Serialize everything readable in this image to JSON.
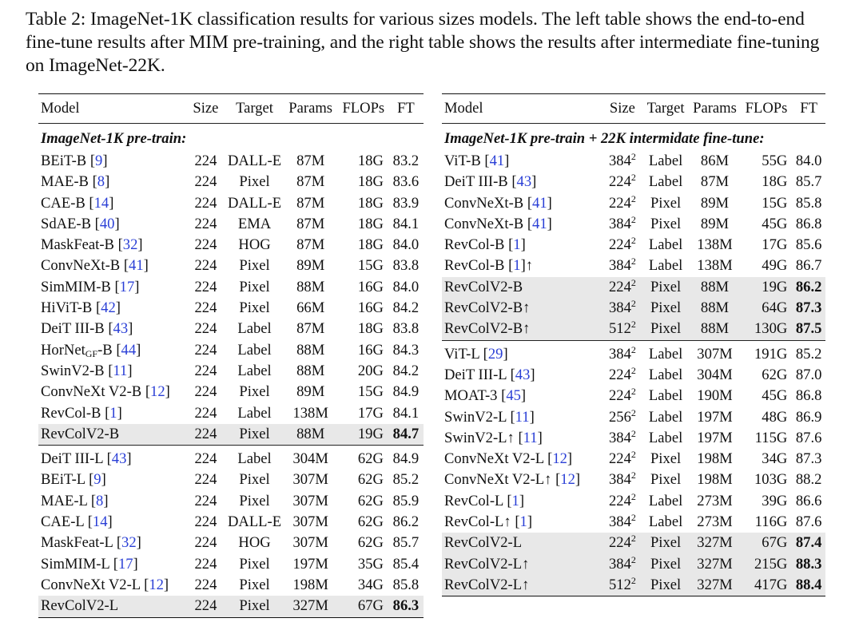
{
  "caption": "Table 2: ImageNet-1K classification results for various sizes models. The left table shows the end-to-end fine-tune results after MIM pre-training, and the right table shows the results after intermediate fine-tuning on ImageNet-22K.",
  "left": {
    "headers": [
      "Model",
      "Size",
      "Target",
      "Params",
      "FLOPs",
      "FT"
    ],
    "section": "ImageNet-1K pre-train:",
    "rows": [
      {
        "name": "BEiT-B",
        "ref": "9",
        "res": "224",
        "target": "DALL-E",
        "params": "87M",
        "flops": "18G",
        "ft": "83.2"
      },
      {
        "name": "MAE-B",
        "ref": "8",
        "res": "224",
        "target": "Pixel",
        "params": "87M",
        "flops": "18G",
        "ft": "83.6"
      },
      {
        "name": "CAE-B",
        "ref": "14",
        "res": "224",
        "target": "DALL-E",
        "params": "87M",
        "flops": "18G",
        "ft": "83.9"
      },
      {
        "name": "SdAE-B",
        "ref": "40",
        "res": "224",
        "target": "EMA",
        "params": "87M",
        "flops": "18G",
        "ft": "84.1"
      },
      {
        "name": "MaskFeat-B",
        "ref": "32",
        "res": "224",
        "target": "HOG",
        "params": "87M",
        "flops": "18G",
        "ft": "84.0"
      },
      {
        "name": "ConvNeXt-B",
        "ref": "41",
        "res": "224",
        "target": "Pixel",
        "params": "89M",
        "flops": "15G",
        "ft": "83.8"
      },
      {
        "name": "SimMIM-B",
        "ref": "17",
        "res": "224",
        "target": "Pixel",
        "params": "88M",
        "flops": "16G",
        "ft": "84.0"
      },
      {
        "name": "HiViT-B",
        "ref": "42",
        "res": "224",
        "target": "Pixel",
        "params": "66M",
        "flops": "16G",
        "ft": "84.2"
      },
      {
        "name": "DeiT III-B",
        "ref": "43",
        "res": "224",
        "target": "Label",
        "params": "87M",
        "flops": "18G",
        "ft": "83.8"
      },
      {
        "name": "HorNet",
        "sub": "GF",
        "suffix": "-B",
        "ref": "44",
        "res": "224",
        "target": "Label",
        "params": "88M",
        "flops": "16G",
        "ft": "84.3"
      },
      {
        "name": "SwinV2-B",
        "ref": "11",
        "res": "224",
        "target": "Label",
        "params": "88M",
        "flops": "20G",
        "ft": "84.2"
      },
      {
        "name": "ConvNeXt V2-B",
        "ref": "12",
        "res": "224",
        "target": "Pixel",
        "params": "89M",
        "flops": "15G",
        "ft": "84.9"
      },
      {
        "name": "RevCol-B",
        "ref": "1",
        "res": "224",
        "target": "Label",
        "params": "138M",
        "flops": "17G",
        "ft": "84.1"
      },
      {
        "name": "RevColV2-B",
        "ref": "",
        "res": "224",
        "target": "Pixel",
        "params": "88M",
        "flops": "19G",
        "ft": "84.7",
        "hl": true,
        "bold": true
      },
      {
        "name": "DeiT III-L",
        "ref": "43",
        "res": "224",
        "target": "Label",
        "params": "304M",
        "flops": "62G",
        "ft": "84.9",
        "divtop": true
      },
      {
        "name": "BEiT-L",
        "ref": "9",
        "res": "224",
        "target": "Pixel",
        "params": "307M",
        "flops": "62G",
        "ft": "85.2"
      },
      {
        "name": "MAE-L",
        "ref": "8",
        "res": "224",
        "target": "Pixel",
        "params": "307M",
        "flops": "62G",
        "ft": "85.9"
      },
      {
        "name": "CAE-L",
        "ref": "14",
        "res": "224",
        "target": "DALL-E",
        "params": "307M",
        "flops": "62G",
        "ft": "86.2"
      },
      {
        "name": "MaskFeat-L",
        "ref": "32",
        "res": "224",
        "target": "HOG",
        "params": "307M",
        "flops": "62G",
        "ft": "85.7"
      },
      {
        "name": "SimMIM-L",
        "ref": "17",
        "res": "224",
        "target": "Pixel",
        "params": "197M",
        "flops": "35G",
        "ft": "85.4"
      },
      {
        "name": "ConvNeXt V2-L",
        "ref": "12",
        "res": "224",
        "target": "Pixel",
        "params": "198M",
        "flops": "34G",
        "ft": "85.8"
      },
      {
        "name": "RevColV2-L",
        "ref": "",
        "res": "224",
        "target": "Pixel",
        "params": "327M",
        "flops": "67G",
        "ft": "86.3",
        "hl": true,
        "bold": true
      }
    ]
  },
  "right": {
    "headers": [
      "Model",
      "Size",
      "Target",
      "Params",
      "FLOPs",
      "FT"
    ],
    "section": "ImageNet-1K pre-train + 22K intermidate fine-tune:",
    "rows": [
      {
        "name": "ViT-B",
        "ref": "41",
        "res": "384",
        "target": "Label",
        "params": "86M",
        "flops": "55G",
        "ft": "84.0"
      },
      {
        "name": "DeiT III-B",
        "ref": "43",
        "res": "224",
        "target": "Label",
        "params": "87M",
        "flops": "18G",
        "ft": "85.7"
      },
      {
        "name": "ConvNeXt-B",
        "ref": "41",
        "res": "224",
        "target": "Pixel",
        "params": "89M",
        "flops": "15G",
        "ft": "85.8"
      },
      {
        "name": "ConvNeXt-B",
        "ref": "41",
        "res": "384",
        "target": "Pixel",
        "params": "89M",
        "flops": "45G",
        "ft": "86.8"
      },
      {
        "name": "RevCol-B",
        "ref": "1",
        "res": "224",
        "target": "Label",
        "params": "138M",
        "flops": "17G",
        "ft": "85.6"
      },
      {
        "name": "RevCol-B",
        "ref": "1",
        "after": "↑",
        "res": "384",
        "target": "Label",
        "params": "138M",
        "flops": "49G",
        "ft": "86.7"
      },
      {
        "name": "RevColV2-B",
        "ref": "",
        "res": "224",
        "target": "Pixel",
        "params": "88M",
        "flops": "19G",
        "ft": "86.2",
        "hl": true,
        "bold": true
      },
      {
        "name": "RevColV2-B↑",
        "ref": "",
        "res": "384",
        "target": "Pixel",
        "params": "88M",
        "flops": "64G",
        "ft": "87.3",
        "hl": true,
        "bold": true
      },
      {
        "name": "RevColV2-B↑",
        "ref": "",
        "res": "512",
        "target": "Pixel",
        "params": "88M",
        "flops": "130G",
        "ft": "87.5",
        "hl": true,
        "bold": true
      },
      {
        "name": "ViT-L",
        "ref": "29",
        "res": "384",
        "target": "Label",
        "params": "307M",
        "flops": "191G",
        "ft": "85.2",
        "divtop": true
      },
      {
        "name": "DeiT III-L",
        "ref": "43",
        "res": "224",
        "target": "Label",
        "params": "304M",
        "flops": "62G",
        "ft": "87.0"
      },
      {
        "name": "MOAT-3",
        "ref": "45",
        "res": "224",
        "target": "Label",
        "params": "190M",
        "flops": "45G",
        "ft": "86.8"
      },
      {
        "name": "SwinV2-L",
        "ref": "11",
        "res": "256",
        "target": "Label",
        "params": "197M",
        "flops": "48G",
        "ft": "86.9"
      },
      {
        "name": "SwinV2-L↑",
        "ref": "11",
        "res": "384",
        "target": "Label",
        "params": "197M",
        "flops": "115G",
        "ft": "87.6"
      },
      {
        "name": "ConvNeXt V2-L",
        "ref": "12",
        "res": "224",
        "target": "Pixel",
        "params": "198M",
        "flops": "34G",
        "ft": "87.3"
      },
      {
        "name": "ConvNeXt V2-L↑",
        "ref": "12",
        "res": "384",
        "target": "Pixel",
        "params": "198M",
        "flops": "103G",
        "ft": "88.2"
      },
      {
        "name": "RevCol-L",
        "ref": "1",
        "res": "224",
        "target": "Label",
        "params": "273M",
        "flops": "39G",
        "ft": "86.6"
      },
      {
        "name": "RevCol-L↑",
        "ref": "1",
        "res": "384",
        "target": "Label",
        "params": "273M",
        "flops": "116G",
        "ft": "87.6"
      },
      {
        "name": "RevColV2-L",
        "ref": "",
        "res": "224",
        "target": "Pixel",
        "params": "327M",
        "flops": "67G",
        "ft": "87.4",
        "hl": true,
        "bold": true
      },
      {
        "name": "RevColV2-L↑",
        "ref": "",
        "res": "384",
        "target": "Pixel",
        "params": "327M",
        "flops": "215G",
        "ft": "88.3",
        "hl": true,
        "bold": true
      },
      {
        "name": "RevColV2-L↑",
        "ref": "",
        "res": "512",
        "target": "Pixel",
        "params": "327M",
        "flops": "417G",
        "ft": "88.4",
        "hl": true,
        "bold": true
      }
    ],
    "sup": "2"
  },
  "sup": "2"
}
